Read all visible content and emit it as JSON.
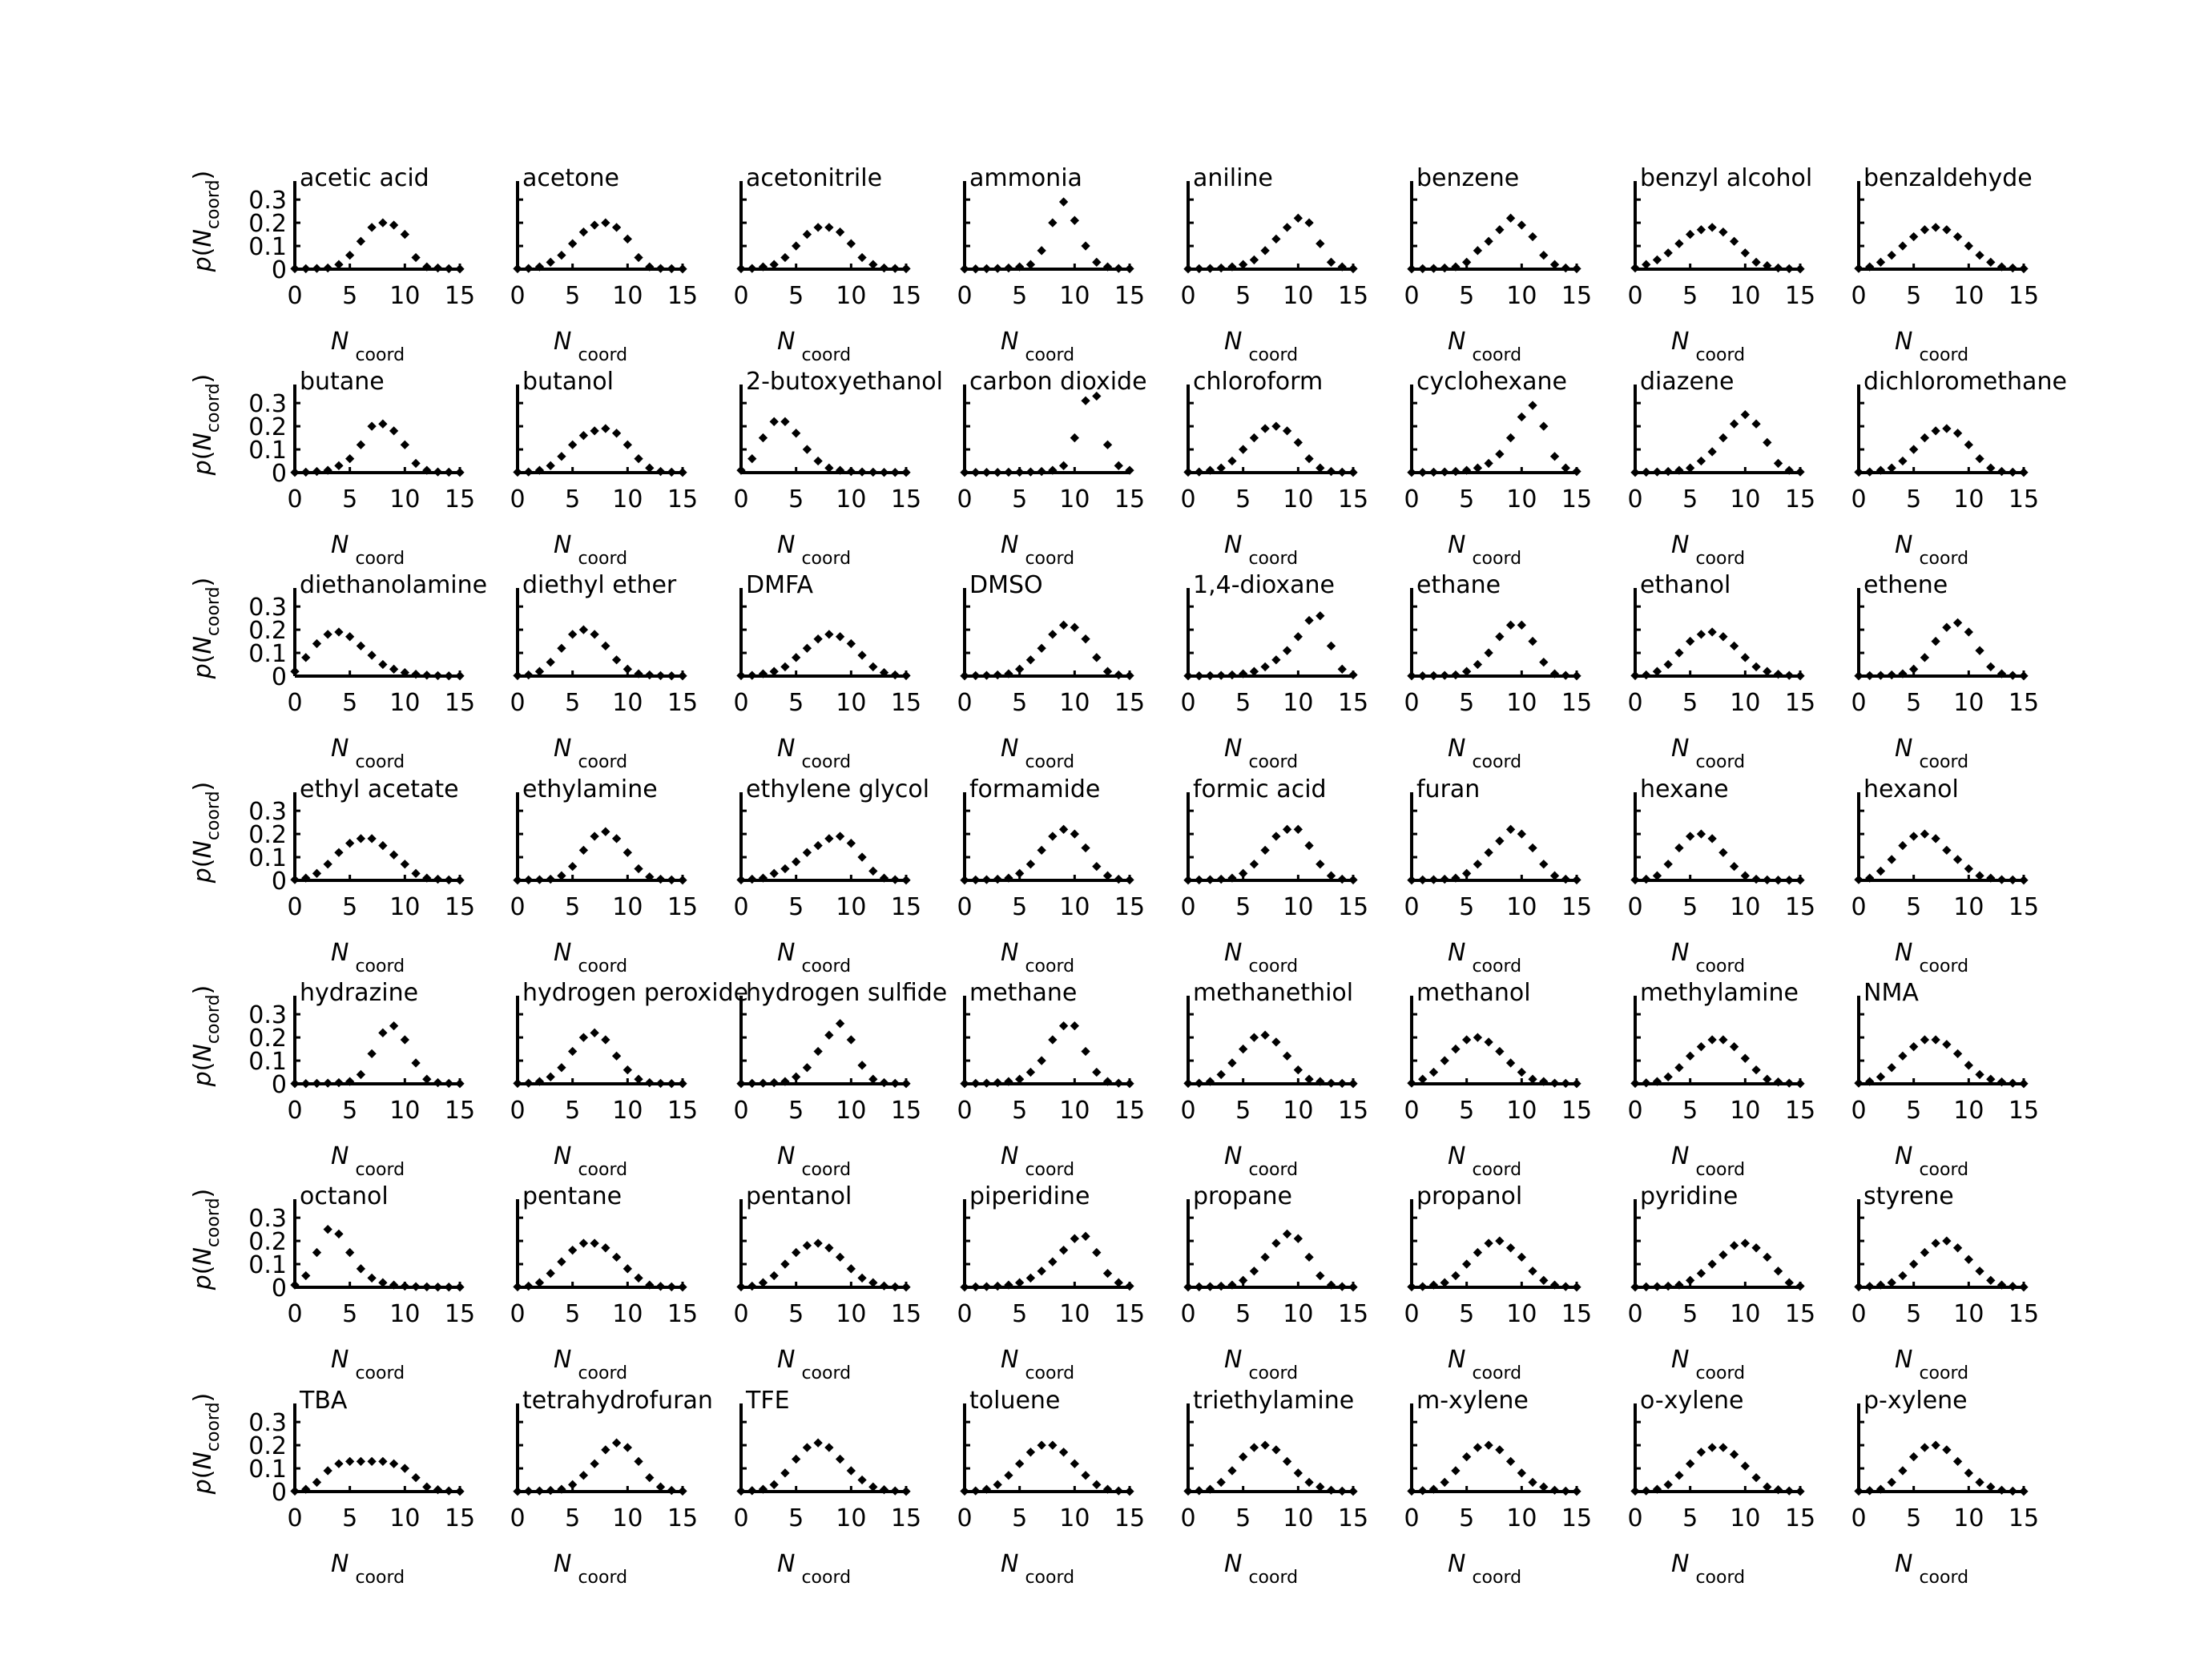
{
  "chart_data": {
    "type": "scatter",
    "layout": {
      "rows": 7,
      "cols": 8
    },
    "xlabel": {
      "main": "N",
      "sub": "coord"
    },
    "ylabel": {
      "prefix": "p(",
      "main": "N",
      "sub": "coord",
      "suffix": ")"
    },
    "xlim": [
      0,
      15
    ],
    "ylim": [
      0,
      0.38
    ],
    "xticks": [
      0,
      5,
      10,
      15
    ],
    "yticks": [
      0,
      0.1,
      0.2,
      0.3
    ],
    "ytick_labels": [
      "0",
      "0.1",
      "0.2",
      "0.3"
    ],
    "x": [
      0,
      1,
      2,
      3,
      4,
      5,
      6,
      7,
      8,
      9,
      10,
      11,
      12,
      13,
      14,
      15
    ],
    "panels": [
      {
        "title": "acetic acid",
        "values": [
          0.002,
          0.002,
          0.003,
          0.005,
          0.02,
          0.06,
          0.12,
          0.18,
          0.2,
          0.19,
          0.15,
          0.05,
          0.01,
          0.005,
          0.002,
          0.001
        ]
      },
      {
        "title": "acetone",
        "values": [
          0.002,
          0.003,
          0.01,
          0.03,
          0.06,
          0.11,
          0.16,
          0.19,
          0.2,
          0.18,
          0.13,
          0.05,
          0.01,
          0.003,
          0.002,
          0.001
        ]
      },
      {
        "title": "acetonitrile",
        "values": [
          0.002,
          0.003,
          0.01,
          0.02,
          0.05,
          0.1,
          0.15,
          0.18,
          0.18,
          0.16,
          0.11,
          0.05,
          0.02,
          0.005,
          0.003,
          0.002
        ]
      },
      {
        "title": "ammonia",
        "values": [
          0.001,
          0.001,
          0.002,
          0.003,
          0.005,
          0.01,
          0.02,
          0.08,
          0.2,
          0.29,
          0.21,
          0.1,
          0.03,
          0.01,
          0.003,
          0.002
        ]
      },
      {
        "title": "aniline",
        "values": [
          0.001,
          0.002,
          0.003,
          0.005,
          0.01,
          0.02,
          0.04,
          0.08,
          0.13,
          0.18,
          0.22,
          0.2,
          0.11,
          0.03,
          0.01,
          0.002
        ]
      },
      {
        "title": "benzene",
        "values": [
          0.001,
          0.002,
          0.003,
          0.005,
          0.01,
          0.03,
          0.08,
          0.12,
          0.17,
          0.22,
          0.19,
          0.14,
          0.06,
          0.02,
          0.005,
          0.002
        ]
      },
      {
        "title": "benzyl alcohol",
        "values": [
          0.005,
          0.02,
          0.04,
          0.07,
          0.11,
          0.15,
          0.17,
          0.18,
          0.16,
          0.12,
          0.07,
          0.03,
          0.015,
          0.005,
          0.002,
          0.001
        ]
      },
      {
        "title": "benzaldehyde",
        "values": [
          0.003,
          0.01,
          0.03,
          0.06,
          0.1,
          0.14,
          0.17,
          0.18,
          0.17,
          0.14,
          0.1,
          0.06,
          0.03,
          0.01,
          0.005,
          0.002
        ]
      },
      {
        "title": "butane",
        "values": [
          0.001,
          0.002,
          0.005,
          0.01,
          0.03,
          0.06,
          0.12,
          0.2,
          0.21,
          0.18,
          0.12,
          0.04,
          0.01,
          0.003,
          0.002,
          0.001
        ]
      },
      {
        "title": "butanol",
        "values": [
          0.002,
          0.003,
          0.01,
          0.03,
          0.07,
          0.12,
          0.16,
          0.18,
          0.19,
          0.17,
          0.12,
          0.06,
          0.02,
          0.005,
          0.002,
          0.001
        ]
      },
      {
        "title": "2-butoxyethanol",
        "values": [
          0.01,
          0.06,
          0.15,
          0.22,
          0.22,
          0.17,
          0.1,
          0.05,
          0.02,
          0.01,
          0.005,
          0.003,
          0.002,
          0.001,
          0.001,
          0.001
        ]
      },
      {
        "title": "carbon dioxide",
        "values": [
          0.001,
          0.001,
          0.001,
          0.001,
          0.002,
          0.002,
          0.003,
          0.005,
          0.01,
          0.03,
          0.15,
          0.31,
          0.33,
          0.12,
          0.03,
          0.01
        ]
      },
      {
        "title": "chloroform",
        "values": [
          0.002,
          0.003,
          0.01,
          0.02,
          0.05,
          0.1,
          0.15,
          0.19,
          0.2,
          0.18,
          0.13,
          0.06,
          0.02,
          0.005,
          0.002,
          0.001
        ]
      },
      {
        "title": "cyclohexane",
        "values": [
          0.001,
          0.001,
          0.002,
          0.003,
          0.005,
          0.01,
          0.02,
          0.04,
          0.08,
          0.15,
          0.24,
          0.29,
          0.2,
          0.07,
          0.02,
          0.005
        ]
      },
      {
        "title": "diazene",
        "values": [
          0.001,
          0.002,
          0.003,
          0.005,
          0.01,
          0.02,
          0.05,
          0.09,
          0.15,
          0.21,
          0.25,
          0.21,
          0.13,
          0.04,
          0.01,
          0.003
        ]
      },
      {
        "title": "dichloromethane",
        "values": [
          0.002,
          0.003,
          0.01,
          0.02,
          0.05,
          0.1,
          0.15,
          0.18,
          0.19,
          0.17,
          0.12,
          0.06,
          0.02,
          0.005,
          0.002,
          0.001
        ]
      },
      {
        "title": "diethanolamine",
        "values": [
          0.02,
          0.08,
          0.14,
          0.18,
          0.19,
          0.17,
          0.13,
          0.09,
          0.05,
          0.03,
          0.015,
          0.008,
          0.004,
          0.002,
          0.001,
          0.001
        ]
      },
      {
        "title": "diethyl ether",
        "values": [
          0.002,
          0.005,
          0.02,
          0.06,
          0.12,
          0.18,
          0.2,
          0.18,
          0.13,
          0.07,
          0.03,
          0.01,
          0.005,
          0.002,
          0.001,
          0.001
        ]
      },
      {
        "title": "DMFA",
        "values": [
          0.002,
          0.003,
          0.01,
          0.02,
          0.04,
          0.08,
          0.12,
          0.16,
          0.18,
          0.17,
          0.14,
          0.09,
          0.04,
          0.015,
          0.005,
          0.002
        ]
      },
      {
        "title": "DMSO",
        "values": [
          0.001,
          0.002,
          0.003,
          0.005,
          0.01,
          0.03,
          0.07,
          0.12,
          0.18,
          0.22,
          0.21,
          0.16,
          0.08,
          0.02,
          0.005,
          0.002
        ]
      },
      {
        "title": "1,4-dioxane",
        "values": [
          0.001,
          0.001,
          0.002,
          0.003,
          0.005,
          0.01,
          0.02,
          0.04,
          0.07,
          0.11,
          0.17,
          0.24,
          0.26,
          0.13,
          0.03,
          0.005
        ]
      },
      {
        "title": "ethane",
        "values": [
          0.001,
          0.001,
          0.002,
          0.003,
          0.005,
          0.02,
          0.05,
          0.1,
          0.17,
          0.22,
          0.22,
          0.15,
          0.06,
          0.01,
          0.003,
          0.001
        ]
      },
      {
        "title": "ethanol",
        "values": [
          0.002,
          0.005,
          0.02,
          0.05,
          0.1,
          0.15,
          0.18,
          0.19,
          0.17,
          0.13,
          0.08,
          0.04,
          0.02,
          0.008,
          0.003,
          0.001
        ]
      },
      {
        "title": "ethene",
        "values": [
          0.001,
          0.002,
          0.003,
          0.005,
          0.01,
          0.03,
          0.08,
          0.15,
          0.21,
          0.23,
          0.19,
          0.11,
          0.04,
          0.01,
          0.003,
          0.001
        ]
      },
      {
        "title": "ethyl acetate",
        "values": [
          0.003,
          0.01,
          0.03,
          0.07,
          0.12,
          0.16,
          0.18,
          0.18,
          0.15,
          0.11,
          0.07,
          0.03,
          0.01,
          0.005,
          0.002,
          0.001
        ]
      },
      {
        "title": "ethylamine",
        "values": [
          0.001,
          0.002,
          0.003,
          0.005,
          0.02,
          0.06,
          0.13,
          0.19,
          0.21,
          0.18,
          0.12,
          0.05,
          0.015,
          0.005,
          0.002,
          0.001
        ]
      },
      {
        "title": "ethylene glycol",
        "values": [
          0.002,
          0.005,
          0.01,
          0.03,
          0.05,
          0.08,
          0.12,
          0.15,
          0.18,
          0.19,
          0.16,
          0.1,
          0.04,
          0.01,
          0.003,
          0.001
        ]
      },
      {
        "title": "formamide",
        "values": [
          0.001,
          0.002,
          0.003,
          0.005,
          0.01,
          0.03,
          0.07,
          0.13,
          0.19,
          0.22,
          0.2,
          0.14,
          0.06,
          0.02,
          0.005,
          0.002
        ]
      },
      {
        "title": "formic acid",
        "values": [
          0.001,
          0.002,
          0.003,
          0.005,
          0.01,
          0.03,
          0.07,
          0.13,
          0.19,
          0.22,
          0.22,
          0.15,
          0.07,
          0.02,
          0.005,
          0.002
        ]
      },
      {
        "title": "furan",
        "values": [
          0.001,
          0.002,
          0.003,
          0.005,
          0.01,
          0.03,
          0.07,
          0.12,
          0.17,
          0.22,
          0.2,
          0.14,
          0.07,
          0.02,
          0.005,
          0.002
        ]
      },
      {
        "title": "hexane",
        "values": [
          0.002,
          0.005,
          0.02,
          0.07,
          0.14,
          0.19,
          0.2,
          0.18,
          0.12,
          0.06,
          0.02,
          0.005,
          0.002,
          0.001,
          0.001,
          0.001
        ]
      },
      {
        "title": "hexanol",
        "values": [
          0.003,
          0.01,
          0.04,
          0.09,
          0.15,
          0.19,
          0.2,
          0.18,
          0.13,
          0.09,
          0.05,
          0.02,
          0.01,
          0.003,
          0.002,
          0.001
        ]
      },
      {
        "title": "hydrazine",
        "values": [
          0.001,
          0.001,
          0.002,
          0.003,
          0.005,
          0.01,
          0.04,
          0.13,
          0.22,
          0.25,
          0.19,
          0.09,
          0.02,
          0.005,
          0.002,
          0.001
        ]
      },
      {
        "title": "hydrogen peroxide",
        "values": [
          0.002,
          0.003,
          0.01,
          0.03,
          0.07,
          0.14,
          0.2,
          0.22,
          0.19,
          0.12,
          0.06,
          0.02,
          0.005,
          0.002,
          0.001,
          0.001
        ]
      },
      {
        "title": "hydrogen sulfide",
        "values": [
          0.001,
          0.002,
          0.003,
          0.005,
          0.01,
          0.03,
          0.07,
          0.14,
          0.21,
          0.26,
          0.19,
          0.08,
          0.02,
          0.005,
          0.002,
          0.001
        ]
      },
      {
        "title": "methane",
        "values": [
          0.001,
          0.002,
          0.003,
          0.005,
          0.01,
          0.02,
          0.05,
          0.1,
          0.19,
          0.25,
          0.25,
          0.14,
          0.05,
          0.01,
          0.003,
          0.001
        ]
      },
      {
        "title": "methanethiol",
        "values": [
          0.002,
          0.003,
          0.01,
          0.04,
          0.09,
          0.15,
          0.2,
          0.21,
          0.18,
          0.12,
          0.06,
          0.02,
          0.01,
          0.003,
          0.002,
          0.001
        ]
      },
      {
        "title": "methanol",
        "values": [
          0.003,
          0.02,
          0.05,
          0.1,
          0.15,
          0.19,
          0.2,
          0.18,
          0.14,
          0.09,
          0.05,
          0.02,
          0.01,
          0.003,
          0.002,
          0.001
        ]
      },
      {
        "title": "methylamine",
        "values": [
          0.002,
          0.004,
          0.01,
          0.03,
          0.07,
          0.12,
          0.16,
          0.19,
          0.19,
          0.16,
          0.11,
          0.06,
          0.02,
          0.008,
          0.003,
          0.001
        ]
      },
      {
        "title": "NMA",
        "values": [
          0.003,
          0.01,
          0.03,
          0.07,
          0.12,
          0.16,
          0.19,
          0.19,
          0.17,
          0.13,
          0.08,
          0.04,
          0.02,
          0.008,
          0.003,
          0.001
        ]
      },
      {
        "title": "octanol",
        "values": [
          0.01,
          0.05,
          0.15,
          0.25,
          0.23,
          0.15,
          0.08,
          0.04,
          0.02,
          0.01,
          0.005,
          0.003,
          0.002,
          0.001,
          0.001,
          0.001
        ]
      },
      {
        "title": "pentane",
        "values": [
          0.002,
          0.005,
          0.02,
          0.06,
          0.11,
          0.16,
          0.19,
          0.19,
          0.17,
          0.13,
          0.08,
          0.04,
          0.01,
          0.004,
          0.002,
          0.001
        ]
      },
      {
        "title": "pentanol",
        "values": [
          0.002,
          0.005,
          0.02,
          0.05,
          0.1,
          0.15,
          0.18,
          0.19,
          0.17,
          0.13,
          0.08,
          0.04,
          0.02,
          0.006,
          0.002,
          0.001
        ]
      },
      {
        "title": "piperidine",
        "values": [
          0.001,
          0.002,
          0.003,
          0.005,
          0.01,
          0.02,
          0.04,
          0.07,
          0.11,
          0.16,
          0.21,
          0.22,
          0.15,
          0.06,
          0.02,
          0.005
        ]
      },
      {
        "title": "propane",
        "values": [
          0.001,
          0.002,
          0.003,
          0.005,
          0.01,
          0.03,
          0.07,
          0.13,
          0.19,
          0.23,
          0.21,
          0.13,
          0.05,
          0.01,
          0.003,
          0.001
        ]
      },
      {
        "title": "propanol",
        "values": [
          0.002,
          0.003,
          0.01,
          0.02,
          0.05,
          0.1,
          0.15,
          0.19,
          0.2,
          0.17,
          0.13,
          0.07,
          0.03,
          0.01,
          0.003,
          0.001
        ]
      },
      {
        "title": "pyridine",
        "values": [
          0.001,
          0.002,
          0.003,
          0.005,
          0.01,
          0.03,
          0.06,
          0.1,
          0.14,
          0.18,
          0.19,
          0.17,
          0.13,
          0.07,
          0.02,
          0.005
        ]
      },
      {
        "title": "styrene",
        "values": [
          0.002,
          0.004,
          0.01,
          0.02,
          0.05,
          0.1,
          0.15,
          0.19,
          0.2,
          0.17,
          0.12,
          0.07,
          0.03,
          0.01,
          0.004,
          0.001
        ]
      },
      {
        "title": "TBA",
        "values": [
          0.002,
          0.01,
          0.04,
          0.09,
          0.12,
          0.13,
          0.13,
          0.13,
          0.13,
          0.12,
          0.1,
          0.06,
          0.02,
          0.008,
          0.003,
          0.001
        ]
      },
      {
        "title": "tetrahydrofuran",
        "values": [
          0.001,
          0.002,
          0.003,
          0.005,
          0.01,
          0.03,
          0.07,
          0.12,
          0.18,
          0.21,
          0.19,
          0.13,
          0.06,
          0.02,
          0.005,
          0.002
        ]
      },
      {
        "title": "TFE",
        "values": [
          0.002,
          0.004,
          0.01,
          0.03,
          0.08,
          0.14,
          0.19,
          0.21,
          0.19,
          0.14,
          0.09,
          0.05,
          0.02,
          0.008,
          0.003,
          0.001
        ]
      },
      {
        "title": "toluene",
        "values": [
          0.002,
          0.003,
          0.01,
          0.03,
          0.07,
          0.12,
          0.17,
          0.2,
          0.2,
          0.17,
          0.12,
          0.07,
          0.03,
          0.01,
          0.003,
          0.001
        ]
      },
      {
        "title": "triethylamine",
        "values": [
          0.002,
          0.004,
          0.01,
          0.04,
          0.09,
          0.15,
          0.19,
          0.2,
          0.18,
          0.13,
          0.08,
          0.04,
          0.02,
          0.006,
          0.002,
          0.001
        ]
      },
      {
        "title": "m-xylene",
        "values": [
          0.002,
          0.004,
          0.01,
          0.04,
          0.09,
          0.15,
          0.19,
          0.2,
          0.18,
          0.13,
          0.08,
          0.04,
          0.02,
          0.006,
          0.002,
          0.001
        ]
      },
      {
        "title": "o-xylene",
        "values": [
          0.002,
          0.003,
          0.01,
          0.03,
          0.07,
          0.12,
          0.17,
          0.19,
          0.19,
          0.16,
          0.11,
          0.06,
          0.02,
          0.008,
          0.003,
          0.001
        ]
      },
      {
        "title": "p-xylene",
        "values": [
          0.002,
          0.004,
          0.01,
          0.04,
          0.09,
          0.15,
          0.19,
          0.2,
          0.18,
          0.13,
          0.08,
          0.04,
          0.02,
          0.006,
          0.002,
          0.001
        ]
      }
    ]
  }
}
